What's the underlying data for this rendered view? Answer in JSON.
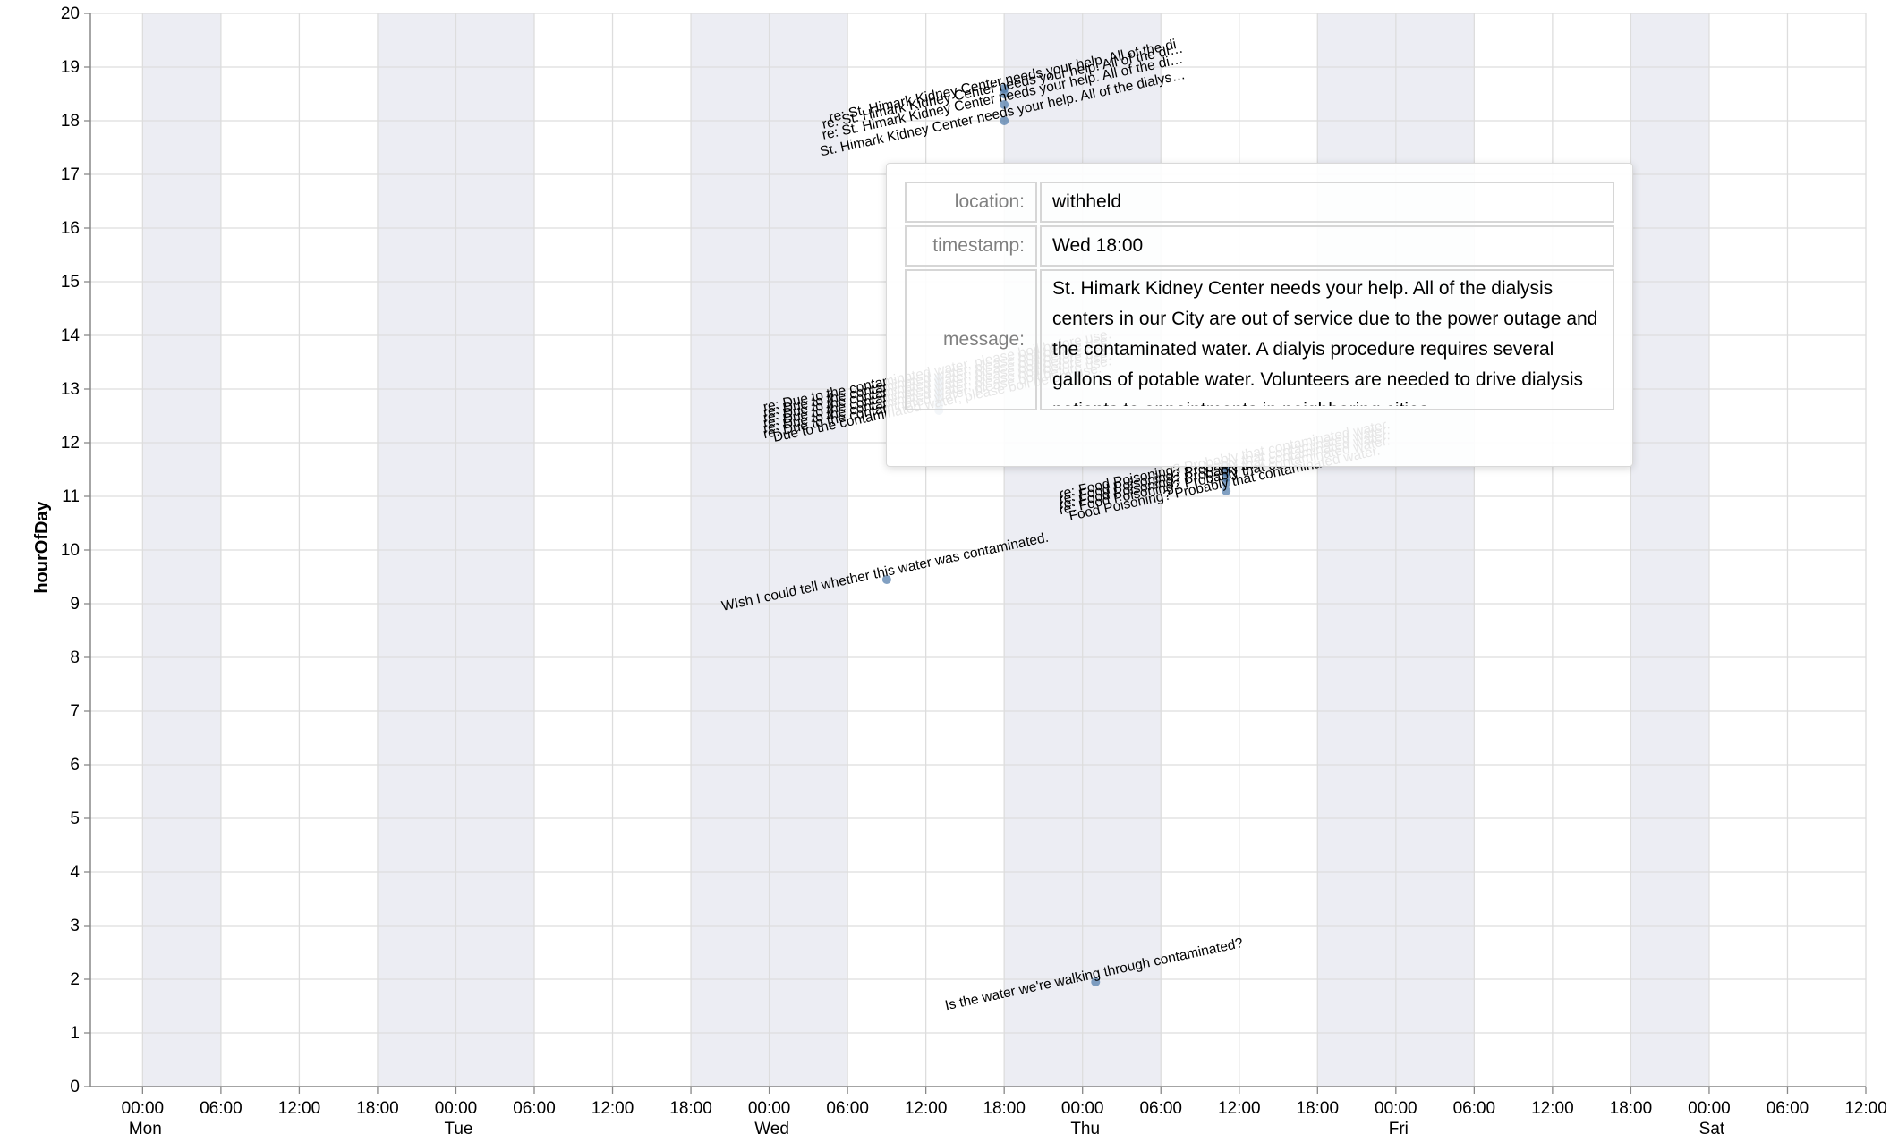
{
  "colors": {
    "point": "#4c78a8",
    "grid": "#dddddd",
    "band": "#ecedf3",
    "axis": "#888888"
  },
  "chart_data": {
    "type": "scatter",
    "xlabel": "",
    "ylabel": "hourOfDay",
    "x_axis": "time (day + hour of week)",
    "xlim": [
      "Mon 00:00",
      "Sat 12:00"
    ],
    "ylim": [
      0,
      20
    ],
    "grid": true,
    "x_ticks": [
      "00:00",
      "06:00",
      "12:00",
      "18:00",
      "00:00",
      "06:00",
      "12:00",
      "18:00",
      "00:00",
      "06:00",
      "12:00",
      "18:00",
      "00:00",
      "06:00",
      "12:00",
      "18:00",
      "00:00",
      "06:00",
      "12:00",
      "18:00",
      "00:00",
      "06:00",
      "12:00"
    ],
    "x_day_labels": [
      "Mon",
      "Tue",
      "Wed",
      "Thu",
      "Fri",
      "Sat"
    ],
    "y_ticks": [
      "0",
      "1",
      "2",
      "3",
      "4",
      "5",
      "6",
      "7",
      "8",
      "9",
      "10",
      "11",
      "12",
      "13",
      "14",
      "15",
      "16",
      "17",
      "18",
      "19",
      "20"
    ],
    "shaded_bands": [
      {
        "from": "Mon 00:00",
        "to": "Mon 06:00"
      },
      {
        "from": "Mon 18:00",
        "to": "Tue 06:00"
      },
      {
        "from": "Tue 18:00",
        "to": "Wed 06:00"
      },
      {
        "from": "Wed 18:00",
        "to": "Thu 06:00"
      },
      {
        "from": "Thu 18:00",
        "to": "Fri 06:00"
      },
      {
        "from": "Fri 18:00",
        "to": "Sat 00:00"
      }
    ],
    "points": [
      {
        "time": "Wed 18:00",
        "hour": 18.0,
        "label": "St. Himark Kidney Center needs your help. All of the dialys…"
      },
      {
        "time": "Wed 18:00",
        "hour": 18.3,
        "label": "re: St. Himark Kidney Center needs your help. All of the di…"
      },
      {
        "time": "Wed 18:00",
        "hour": 18.5,
        "label": "re: St. Himark Kidney Center needs your help. All of the di…"
      },
      {
        "time": "Wed 18:00",
        "hour": 18.6,
        "label": "re: St. Himark Kidney Center needs your help. All of the di"
      },
      {
        "time": "Wed 09:00",
        "hour": 9.45,
        "label": "WIsh I could tell whether this water was contaminated."
      },
      {
        "time": "Thu 01:00",
        "hour": 1.95,
        "label": "Is the water we're walking through contaminated?"
      },
      {
        "time": "Thu 11:00",
        "hour": 11.1,
        "label": "Food Poisoning? Probably that contaminated water."
      },
      {
        "time": "Thu 11:00",
        "hour": 11.25,
        "label": "re: Food Poisoning? Probably that contaminated water."
      },
      {
        "time": "Thu 11:00",
        "hour": 11.35,
        "label": "re: Food Poisoning? Probably that contaminated water."
      },
      {
        "time": "Thu 11:00",
        "hour": 11.45,
        "label": "re: Food Poisoning? Probably that contaminated water."
      },
      {
        "time": "Thu 11:00",
        "hour": 11.55,
        "label": "re: Food Poisoning? Probably that contaminated water."
      },
      {
        "time": "Wed 13:00",
        "hour": 13.0,
        "label": "re: Due to the contaminated water, please boil before use."
      },
      {
        "time": "Wed 13:00",
        "hour": 13.1,
        "label": "re: Due to the contaminated water, please boil before use."
      },
      {
        "time": "Wed 13:00",
        "hour": 13.2,
        "label": "re: Due to the contaminated water, please boil before use."
      },
      {
        "time": "Wed 13:00",
        "hour": 12.9,
        "label": "re: Due to the contaminated water, please boil before use."
      },
      {
        "time": "Wed 13:00",
        "hour": 12.8,
        "label": "re: Due to the contaminated water, please boil before use."
      },
      {
        "time": "Wed 13:00",
        "hour": 12.7,
        "label": "re: Due to the contaminated water, please boil before use."
      },
      {
        "time": "Wed 13:00",
        "hour": 12.6,
        "label": "Due to the contaminated water, please boil before use."
      }
    ]
  },
  "tooltip": {
    "location_key": "location:",
    "location_value": "withheld",
    "timestamp_key": "timestamp:",
    "timestamp_value": "Wed 18:00",
    "message_key": "message:",
    "message_value": "St. Himark Kidney Center needs your help. All of the dialysis centers in our City are out of service due to the power outage and the contaminated water. A dialyis procedure requires several gallons of potable water. Volunteers are needed to drive dialysis patients to appointments in neighboring cities"
  }
}
